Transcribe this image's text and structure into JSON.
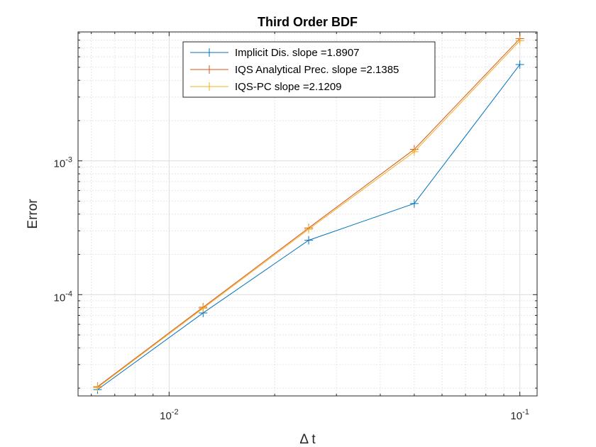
{
  "chart_data": {
    "type": "line",
    "title": "Third Order BDF",
    "xlabel": "Δ t",
    "ylabel": "Error",
    "xscale": "log",
    "yscale": "log",
    "xlim": [
      0.0055,
      0.112
    ],
    "ylim": [
      1.75e-05,
      0.0092
    ],
    "xticks": [
      {
        "value": 0.01,
        "base": "10",
        "exp": "-2"
      },
      {
        "value": 0.1,
        "base": "10",
        "exp": "-1"
      }
    ],
    "yticks": [
      {
        "value": 0.0001,
        "base": "10",
        "exp": "-4"
      },
      {
        "value": 0.001,
        "base": "10",
        "exp": "-3"
      }
    ],
    "grid": true,
    "minor_grid": true,
    "legend_position": "top",
    "x": [
      0.00625,
      0.0125,
      0.025,
      0.05,
      0.1
    ],
    "series": [
      {
        "name": "Implicit Dis. slope =1.8907",
        "color": "#0072BD",
        "values": [
          1.95e-05,
          7.3e-05,
          0.000255,
          0.00048,
          0.00525
        ]
      },
      {
        "name": "IQS Analytical Prec. slope =2.1385",
        "color": "#D95319",
        "values": [
          2.05e-05,
          8.05e-05,
          0.000315,
          0.00122,
          0.0082
        ]
      },
      {
        "name": "IQS-PC slope =2.1209",
        "color": "#EDB120",
        "values": [
          2.02e-05,
          7.9e-05,
          0.000308,
          0.00117,
          0.0079
        ]
      }
    ]
  }
}
